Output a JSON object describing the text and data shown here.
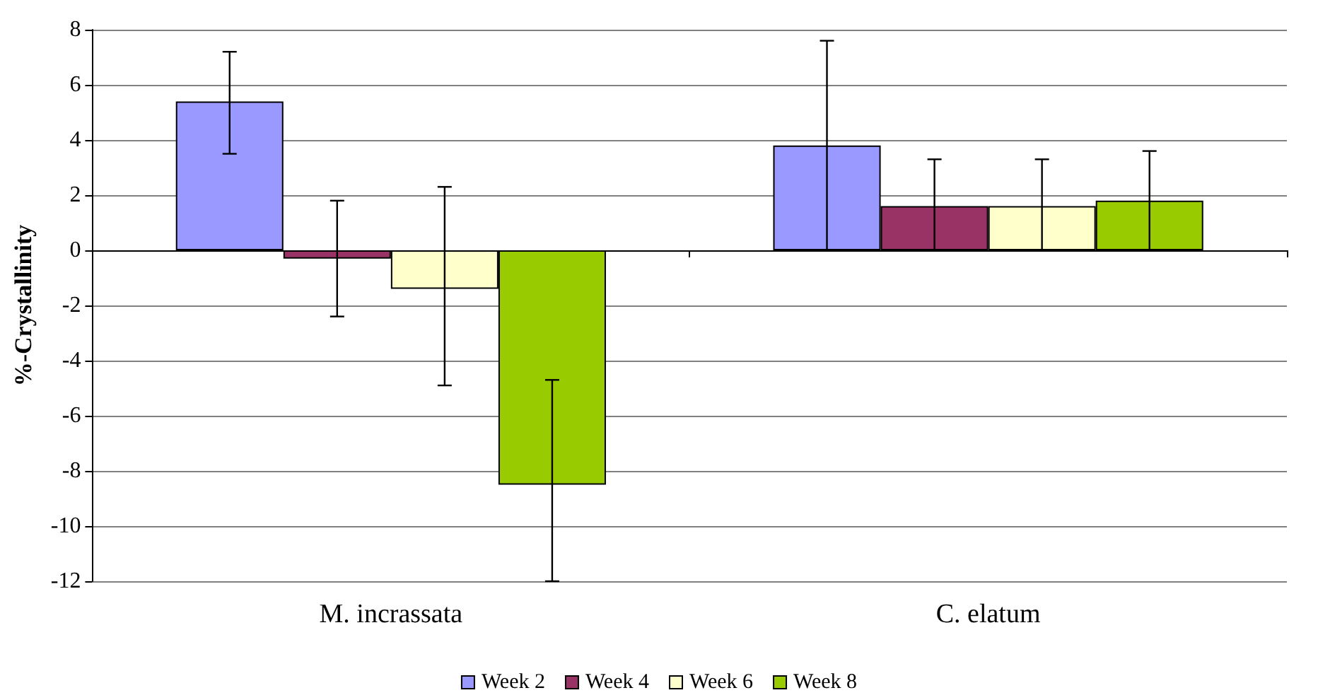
{
  "chart_data": {
    "type": "bar",
    "ylabel": "%-Crystallinity",
    "categories": [
      "M. incrassata",
      "C. elatum"
    ],
    "series": [
      {
        "name": "Week 2",
        "color": "#9999ff",
        "values": [
          5.4,
          3.8
        ],
        "errors": [
          [
            3.5,
            7.2
          ],
          [
            0,
            7.6
          ]
        ]
      },
      {
        "name": "Week 4",
        "color": "#993366",
        "values": [
          -0.3,
          1.6
        ],
        "errors": [
          [
            -2.4,
            1.8
          ],
          [
            0,
            3.3
          ]
        ]
      },
      {
        "name": "Week 6",
        "color": "#ffffcc",
        "values": [
          -1.4,
          1.6
        ],
        "errors": [
          [
            -4.9,
            2.3
          ],
          [
            0,
            3.3
          ]
        ]
      },
      {
        "name": "Week 8",
        "color": "#99cc00",
        "values": [
          -8.5,
          1.8
        ],
        "errors": [
          [
            -12,
            -4.7
          ],
          [
            0,
            3.6
          ]
        ]
      }
    ],
    "ylim": [
      -12,
      8
    ],
    "yticks": [
      -12,
      -10,
      -8,
      -6,
      -4,
      -2,
      0,
      2,
      4,
      6,
      8
    ],
    "grid": "y",
    "legend": "bottom"
  }
}
